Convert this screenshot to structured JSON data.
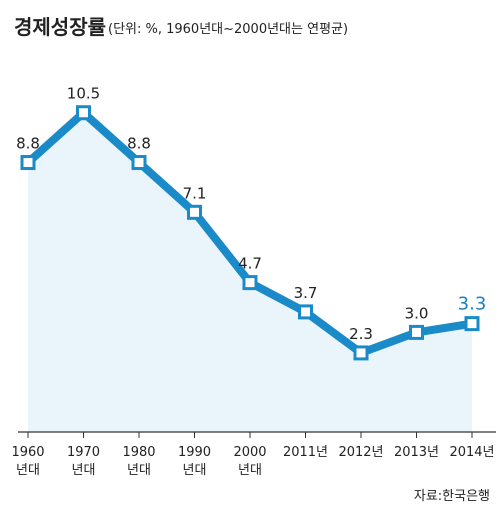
{
  "header": {
    "title": "경제성장률",
    "subtitle": "(단위: %, 1960년대~2000년대는 연평균)"
  },
  "source": "자료:한국은행",
  "colors": {
    "line": "#1a8ac9",
    "area": "#eaf4fb",
    "marker_fill": "#ffffff",
    "highlight_label": "#1a7fc0",
    "axis": "#333333"
  },
  "chart_data": {
    "type": "line",
    "categories": [
      [
        "1960",
        "년대"
      ],
      [
        "1970",
        "년대"
      ],
      [
        "1980",
        "년대"
      ],
      [
        "1990",
        "년대"
      ],
      [
        "2000",
        "년대"
      ],
      [
        "2011년"
      ],
      [
        "2012년"
      ],
      [
        "2013년"
      ],
      [
        "2014년"
      ]
    ],
    "values": [
      8.8,
      10.5,
      8.8,
      7.1,
      4.7,
      3.7,
      2.3,
      3.0,
      3.3
    ],
    "value_labels": [
      "8.8",
      "10.5",
      "8.8",
      "7.1",
      "4.7",
      "3.7",
      "2.3",
      "3.0",
      "3.3"
    ],
    "highlight_index": 8,
    "ylim": [
      -0.4,
      12.3
    ],
    "grid": false,
    "fill_area": true
  }
}
